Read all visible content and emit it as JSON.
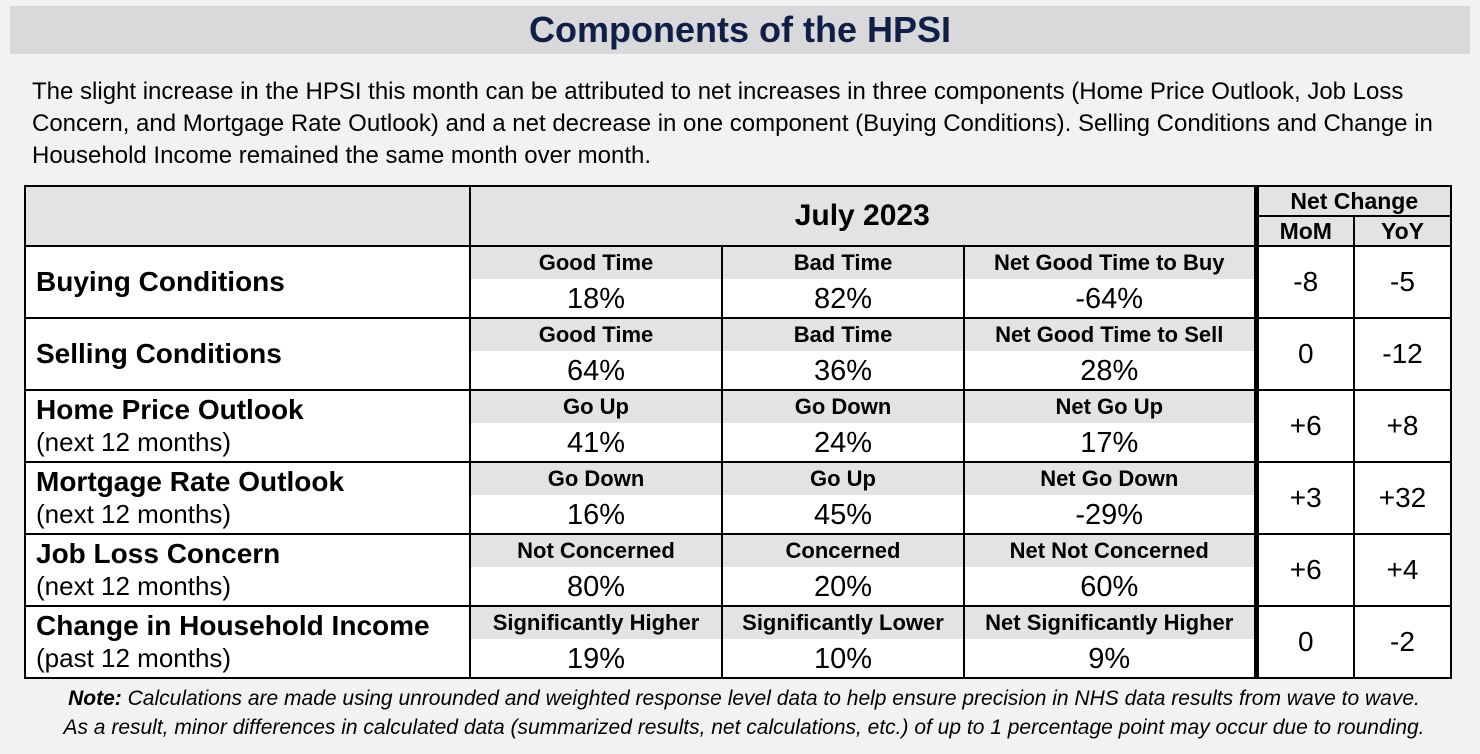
{
  "title": "Components of the HPSI",
  "intro": "The slight increase in the HPSI this month can be attributed to net increases in three components (Home Price Outlook, Job Loss Concern, and Mortgage Rate Outlook) and a net decrease in one component (Buying Conditions). Selling Conditions and Change in Household Income remained the same month over month.",
  "table": {
    "period": "July 2023",
    "net_change": "Net Change",
    "mom": "MoM",
    "yoy": "YoY",
    "rows": [
      {
        "name": "Buying Conditions",
        "sub": "",
        "labels": [
          "Good Time",
          "Bad Time",
          "Net Good Time to Buy"
        ],
        "values": [
          "18%",
          "82%",
          "-64%"
        ],
        "mom": "-8",
        "yoy": "-5"
      },
      {
        "name": "Selling Conditions",
        "sub": "",
        "labels": [
          "Good Time",
          "Bad Time",
          "Net Good Time to Sell"
        ],
        "values": [
          "64%",
          "36%",
          "28%"
        ],
        "mom": "0",
        "yoy": "-12"
      },
      {
        "name": "Home Price Outlook",
        "sub": "(next 12 months)",
        "labels": [
          "Go Up",
          "Go Down",
          "Net Go Up"
        ],
        "values": [
          "41%",
          "24%",
          "17%"
        ],
        "mom": "+6",
        "yoy": "+8"
      },
      {
        "name": "Mortgage Rate Outlook",
        "sub": "(next 12 months)",
        "labels": [
          "Go Down",
          "Go Up",
          "Net Go Down"
        ],
        "values": [
          "16%",
          "45%",
          "-29%"
        ],
        "mom": "+3",
        "yoy": "+32"
      },
      {
        "name": "Job Loss Concern",
        "sub": "(next 12 months)",
        "labels": [
          "Not Concerned",
          "Concerned",
          "Net Not Concerned"
        ],
        "values": [
          "80%",
          "20%",
          "60%"
        ],
        "mom": "+6",
        "yoy": "+4"
      },
      {
        "name": "Change in Household Income",
        "sub": "(past 12 months)",
        "labels": [
          "Significantly Higher",
          "Significantly Lower",
          "Net Significantly Higher"
        ],
        "values": [
          "19%",
          "10%",
          "9%"
        ],
        "mom": "0",
        "yoy": "-2"
      }
    ]
  },
  "note": {
    "label": "Note:",
    "line1": "Calculations are made using unrounded and weighted response level data to help ensure precision in NHS data results from wave to wave.",
    "line2": "As a result, minor differences in calculated data (summarized results, net calculations, etc.) of up to 1 percentage point may occur due to rounding."
  }
}
